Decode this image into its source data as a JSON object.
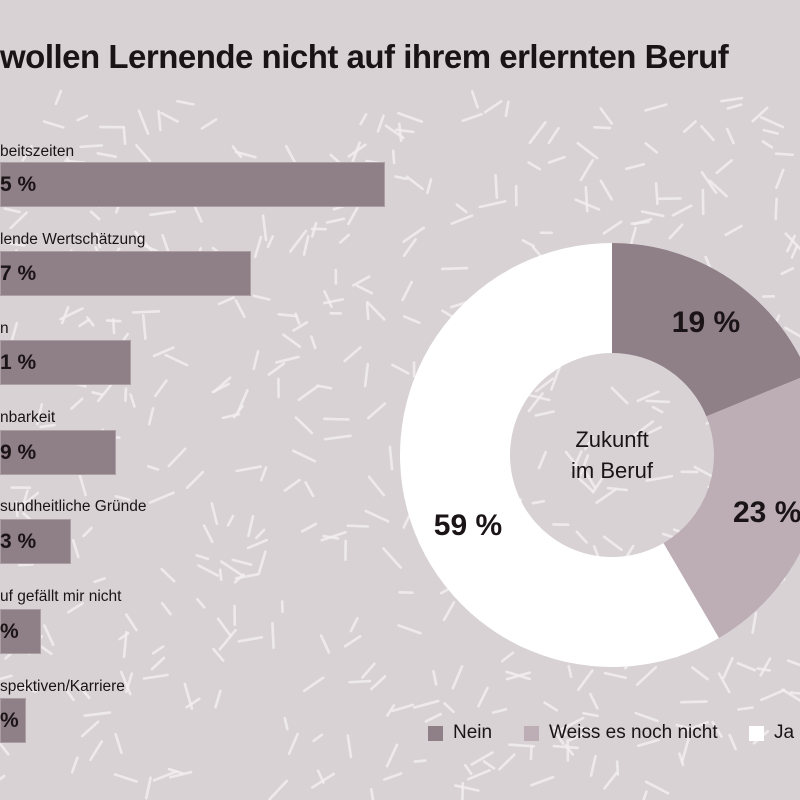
{
  "title": "wollen Lernende nicht auf ihrem erlernten Beruf",
  "colors": {
    "background": "#d8d2d5",
    "nein": "#8f7f86",
    "weiss": "#bcaeb4",
    "ja": "#ffffff"
  },
  "bars": [
    {
      "label": "beitszeiten",
      "value_label": "5 %"
    },
    {
      "label": "lende Wertschätzung",
      "value_label": "7 %"
    },
    {
      "label": "n",
      "value_label": "1 %"
    },
    {
      "label": "nbarkeit",
      "value_label": "9 %"
    },
    {
      "label": "sundheitliche Gründe",
      "value_label": "3 %"
    },
    {
      "label": "uf gefällt mir nicht",
      "value_label": "%"
    },
    {
      "label": "spektiven/Karriere",
      "value_label": "%"
    }
  ],
  "chart_data": [
    {
      "type": "bar",
      "title": "wollen Lernende nicht auf ihrem erlernten Beruf",
      "categories": [
        "beitszeiten",
        "lende Wertschätzung",
        "n",
        "nbarkeit",
        "sundheitliche Gründe",
        "uf gefällt mir nicht",
        "spektiven/Karriere"
      ],
      "values": [
        385,
        251,
        131,
        116,
        71,
        41,
        26
      ],
      "value_labels": [
        "5 %",
        "7 %",
        "1 %",
        "9 %",
        "3 %",
        "%",
        "%"
      ]
    },
    {
      "type": "pie",
      "title": "Zukunft im Beruf",
      "center_label_line1": "Zukunft",
      "center_label_line2": "im Beruf",
      "categories": [
        "Nein",
        "Weiss es noch nicht",
        "Ja"
      ],
      "values": [
        19,
        23,
        59
      ],
      "labels": [
        "19 %",
        "23 %",
        "59 %"
      ],
      "colors": [
        "#8f7f86",
        "#bcaeb4",
        "#ffffff"
      ],
      "legend_position": "bottom"
    }
  ],
  "legend": [
    {
      "label": "Nein",
      "color": "#8f7f86"
    },
    {
      "label": "Weiss es noch nicht",
      "color": "#bcaeb4"
    },
    {
      "label": "Ja",
      "color": "#ffffff"
    }
  ]
}
